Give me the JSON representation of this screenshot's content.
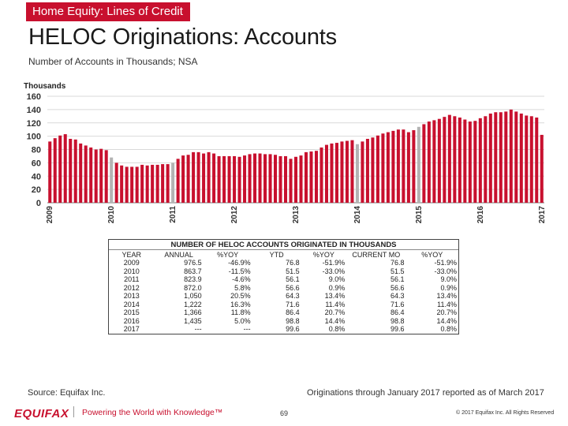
{
  "header": {
    "section_tag": "Home Equity: Lines of Credit",
    "title": "HELOC Originations: Accounts",
    "subtitle": "Number of Accounts in Thousands; NSA"
  },
  "colors": {
    "bar": "#c8102e",
    "bar_projected": "#b3b3b3",
    "accent": "#c8102e",
    "grid": "#d9d9d9"
  },
  "chart_data": {
    "type": "bar",
    "ylabel": "Thousands",
    "ylim": [
      0,
      160
    ],
    "yticks": [
      0,
      20,
      40,
      60,
      80,
      100,
      120,
      140,
      160
    ],
    "grid": true,
    "x_year_labels": [
      "2009",
      "2010",
      "2011",
      "2012",
      "2013",
      "2014",
      "2015",
      "2016",
      "2017"
    ],
    "values": [
      92,
      97,
      101,
      103,
      96,
      95,
      89,
      86,
      83,
      80,
      81,
      79,
      68,
      60,
      56,
      54,
      54,
      54,
      57,
      56,
      57,
      57,
      58,
      58,
      60,
      66,
      71,
      72,
      76,
      76,
      74,
      76,
      74,
      70,
      70,
      70,
      70,
      69,
      71,
      73,
      74,
      74,
      73,
      73,
      72,
      70,
      70,
      66,
      69,
      71,
      76,
      77,
      78,
      83,
      87,
      89,
      90,
      92,
      93,
      94,
      88,
      92,
      96,
      98,
      101,
      104,
      106,
      108,
      110,
      110,
      106,
      109,
      114,
      118,
      122,
      124,
      126,
      129,
      132,
      130,
      128,
      125,
      122,
      123,
      127,
      130,
      134,
      136,
      136,
      137,
      140,
      137,
      134,
      131,
      130,
      128,
      102
    ],
    "projected": [
      false,
      false,
      false,
      false,
      false,
      false,
      false,
      false,
      false,
      false,
      false,
      false,
      true,
      false,
      false,
      false,
      false,
      false,
      false,
      false,
      false,
      false,
      false,
      false,
      true,
      false,
      false,
      false,
      false,
      false,
      false,
      false,
      false,
      false,
      false,
      false,
      false,
      false,
      false,
      false,
      false,
      false,
      false,
      false,
      false,
      false,
      false,
      false,
      false,
      false,
      false,
      false,
      false,
      false,
      false,
      false,
      false,
      false,
      false,
      false,
      true,
      false,
      false,
      false,
      false,
      false,
      false,
      false,
      false,
      false,
      false,
      false,
      true,
      false,
      false,
      false,
      false,
      false,
      false,
      false,
      false,
      false,
      false,
      false,
      false,
      false,
      false,
      false,
      false,
      false,
      false,
      false,
      false,
      false,
      false,
      false,
      false
    ]
  },
  "table": {
    "title": "NUMBER OF HELOC ACCOUNTS ORIGINATED IN THOUSANDS",
    "columns": [
      "YEAR",
      "ANNUAL",
      "%YOY",
      "YTD",
      "%YOY",
      "CURRENT MO",
      "%YOY"
    ],
    "rows": [
      [
        "2009",
        "976.5",
        "-46.9%",
        "76.8",
        "-51.9%",
        "76.8",
        "-51.9%"
      ],
      [
        "2010",
        "863.7",
        "-11.5%",
        "51.5",
        "-33.0%",
        "51.5",
        "-33.0%"
      ],
      [
        "2011",
        "823.9",
        "-4.6%",
        "56.1",
        "9.0%",
        "56.1",
        "9.0%"
      ],
      [
        "2012",
        "872.0",
        "5.8%",
        "56.6",
        "0.9%",
        "56.6",
        "0.9%"
      ],
      [
        "2013",
        "1,050",
        "20.5%",
        "64.3",
        "13.4%",
        "64.3",
        "13.4%"
      ],
      [
        "2014",
        "1,222",
        "16.3%",
        "71.6",
        "11.4%",
        "71.6",
        "11.4%"
      ],
      [
        "2015",
        "1,366",
        "11.8%",
        "86.4",
        "20.7%",
        "86.4",
        "20.7%"
      ],
      [
        "2016",
        "1,435",
        "5.0%",
        "98.8",
        "14.4%",
        "98.8",
        "14.4%"
      ],
      [
        "2017",
        "---",
        "---",
        "99.6",
        "0.8%",
        "99.6",
        "0.8%"
      ]
    ]
  },
  "footer": {
    "source": "Source: Equifax Inc.",
    "note": "Originations through January 2017 reported as of March 2017",
    "logo": "EQUIFAX",
    "tagline": "Powering the World with Knowledge™",
    "page_number": "69",
    "copyright": "© 2017 Equifax Inc. All Rights Reserved"
  }
}
